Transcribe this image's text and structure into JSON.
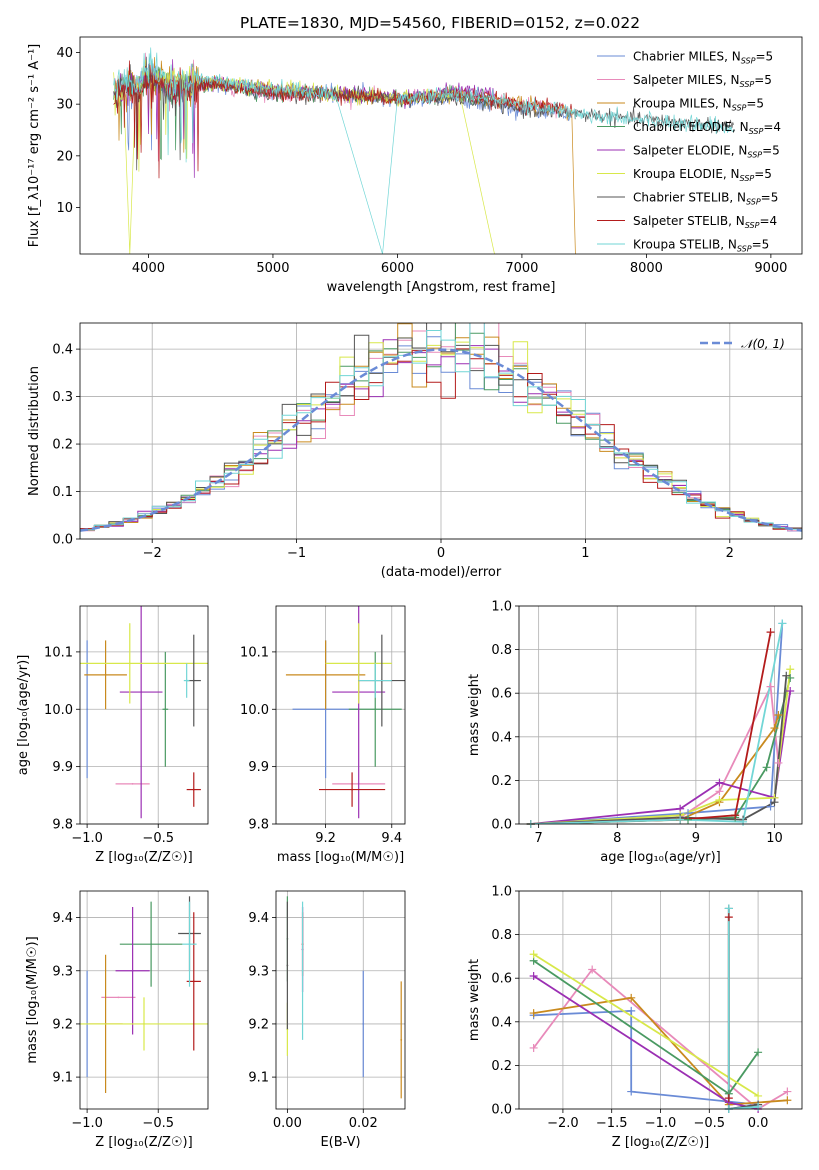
{
  "title": "PLATE=1830, MJD=54560, FIBERID=0152, z=0.022",
  "colors": {
    "Chabrier MILES": "#6a8bd6",
    "Salpeter MILES": "#e88aba",
    "Kroupa MILES": "#c98a1e",
    "Chabrier ELODIE": "#4a9a62",
    "Salpeter ELODIE": "#9b2fb3",
    "Kroupa ELODIE": "#d8e84a",
    "Chabrier STELIB": "#555555",
    "Salpeter STELIB": "#b31b1b",
    "Kroupa STELIB": "#72d6d6"
  },
  "chart_data": [
    {
      "id": "spectrum",
      "type": "line",
      "xlabel": "wavelength [Angstrom, rest frame]",
      "ylabel": "Flux [f_λ10⁻¹⁷ erg cm⁻² s⁻¹ A⁻¹]",
      "xlim": [
        3450,
        9250
      ],
      "ylim": [
        1,
        43
      ],
      "xticks": [
        4000,
        5000,
        6000,
        7000,
        8000,
        9000
      ],
      "yticks": [
        10,
        20,
        30,
        40
      ],
      "grid": false,
      "legend_position": "top-right",
      "series": [
        {
          "name": "Chabrier MILES",
          "label": "Chabrier MILES, N",
          "sub": "SSP",
          "suffix": "=5",
          "x": [
            3720,
            3800,
            3900,
            4000,
            4200,
            4500,
            5000,
            5500,
            6000,
            6500,
            7000,
            7400
          ],
          "y": [
            32,
            34,
            33,
            36,
            33,
            34,
            32,
            32,
            31,
            31,
            29,
            28
          ]
        },
        {
          "name": "Salpeter MILES",
          "label": "Salpeter MILES, N",
          "sub": "SSP",
          "suffix": "=5",
          "x": [
            3720,
            3800,
            3900,
            4000,
            4200,
            4500,
            5000,
            5500,
            6000,
            6500,
            7000,
            7400
          ],
          "y": [
            32,
            33,
            33,
            35,
            33,
            34,
            32,
            32,
            31,
            32,
            30,
            29
          ]
        },
        {
          "name": "Kroupa MILES",
          "label": "Kroupa MILES, N",
          "sub": "SSP",
          "suffix": "=5",
          "x": [
            3720,
            3800,
            3900,
            4000,
            4200,
            4500,
            5000,
            5500,
            6000,
            6500,
            7000,
            7400,
            7430
          ],
          "y": [
            32,
            33,
            34,
            36,
            34,
            34,
            33,
            32,
            31,
            32,
            30,
            29,
            1
          ]
        },
        {
          "name": "Chabrier ELODIE",
          "label": "Chabrier ELODIE, N",
          "sub": "SSP",
          "suffix": "=4",
          "x": [
            3720,
            3800,
            3900,
            4000,
            4200,
            4500,
            5000,
            5500,
            6000,
            6500,
            6780
          ],
          "y": [
            31,
            34,
            33,
            36,
            33,
            34,
            32,
            32,
            31,
            32,
            31
          ]
        },
        {
          "name": "Salpeter ELODIE",
          "label": "Salpeter ELODIE, N",
          "sub": "SSP",
          "suffix": "=5",
          "x": [
            3720,
            3800,
            3900,
            4000,
            4200,
            4500,
            5000,
            5500,
            6000,
            6500,
            6780
          ],
          "y": [
            31,
            33,
            33,
            35,
            33,
            34,
            33,
            32,
            31,
            33,
            32
          ]
        },
        {
          "name": "Kroupa ELODIE",
          "label": "Kroupa ELODIE, N",
          "sub": "SSP",
          "suffix": "=5",
          "x": [
            3720,
            3800,
            3850,
            3900,
            4000,
            4200,
            4500,
            5000,
            5500,
            6000,
            6500,
            6780
          ],
          "y": [
            31,
            33,
            1,
            33,
            36,
            34,
            34,
            33,
            32,
            31,
            32,
            1
          ]
        },
        {
          "name": "Chabrier STELIB",
          "label": "Chabrier STELIB, N",
          "sub": "SSP",
          "suffix": "=5",
          "x": [
            3720,
            3800,
            3900,
            4000,
            4200,
            4500,
            5000,
            5500,
            6000,
            6500,
            7000,
            7500,
            8000,
            8500,
            8700
          ],
          "y": [
            31,
            34,
            33,
            35,
            32,
            34,
            32,
            32,
            31,
            31,
            29,
            28,
            27,
            26,
            26
          ]
        },
        {
          "name": "Salpeter STELIB",
          "label": "Salpeter STELIB, N",
          "sub": "SSP",
          "suffix": "=4",
          "x": [
            3720,
            3800,
            3900,
            4000,
            4200,
            4500,
            5000,
            5500,
            6000,
            6500,
            7000,
            7400
          ],
          "y": [
            31,
            33,
            32,
            35,
            33,
            34,
            32,
            32,
            31,
            32,
            30,
            29
          ]
        },
        {
          "name": "Kroupa STELIB",
          "label": "Kroupa STELIB, N",
          "sub": "SSP",
          "suffix": "=5",
          "x": [
            3720,
            3800,
            3900,
            4000,
            4200,
            4500,
            5000,
            5500,
            5880,
            6000,
            6500,
            7000,
            7500,
            8000,
            8500,
            8700
          ],
          "y": [
            32,
            35,
            34,
            37,
            34,
            35,
            33,
            32,
            1,
            31,
            32,
            30,
            28,
            27,
            26,
            25
          ]
        }
      ]
    },
    {
      "id": "residuals",
      "type": "histogram",
      "xlabel": "(data-model)/error",
      "ylabel": "Normed distribution",
      "xlim": [
        -2.5,
        2.5
      ],
      "ylim": [
        0,
        0.455
      ],
      "xticks": [
        -2,
        -1,
        0,
        1,
        2
      ],
      "yticks": [
        0.0,
        0.1,
        0.2,
        0.3,
        0.4
      ],
      "grid": true,
      "legend_position": "top-right",
      "reference_curve": {
        "label": "𝒩(0, 1)",
        "style": "dashed",
        "color": "#6a8bd6"
      },
      "bins_edges_start": -2.5,
      "bin_width": 0.1
    },
    {
      "id": "age_vs_Z",
      "type": "errorbar",
      "xlabel": "Z [log₁₀(Z/Z☉)]",
      "ylabel": "age  [log₁₀(age/yr)]",
      "xlim": [
        -1.05,
        -0.15
      ],
      "ylim": [
        9.8,
        10.18
      ],
      "xticks": [
        -1.0,
        -0.5
      ],
      "yticks": [
        9.8,
        9.9,
        10.0,
        10.1
      ],
      "grid": true,
      "points": [
        {
          "series": "Chabrier MILES",
          "x": -1.0,
          "xerr": 0.0,
          "y": 10.0,
          "yerr": 0.12
        },
        {
          "series": "Salpeter MILES",
          "x": -0.68,
          "xerr": 0.12,
          "y": 9.87,
          "yerr": 0.0
        },
        {
          "series": "Kroupa MILES",
          "x": -0.87,
          "xerr": 0.15,
          "y": 10.06,
          "yerr": 0.06
        },
        {
          "series": "Chabrier ELODIE",
          "x": -0.45,
          "xerr": 0.02,
          "y": 10.0,
          "yerr": 0.1
        },
        {
          "series": "Salpeter ELODIE",
          "x": -0.62,
          "xerr": 0.15,
          "y": 10.03,
          "yerr": 0.22
        },
        {
          "series": "Kroupa ELODIE",
          "x": -0.7,
          "xerr": 0.55,
          "y": 10.08,
          "yerr": 0.07
        },
        {
          "series": "Chabrier STELIB",
          "x": -0.25,
          "xerr": 0.05,
          "y": 10.05,
          "yerr": 0.08
        },
        {
          "series": "Salpeter STELIB",
          "x": -0.25,
          "xerr": 0.05,
          "y": 9.86,
          "yerr": 0.03
        },
        {
          "series": "Kroupa STELIB",
          "x": -0.3,
          "xerr": 0.02,
          "y": 10.05,
          "yerr": 0.03
        }
      ]
    },
    {
      "id": "age_vs_mass",
      "type": "errorbar",
      "xlabel": "mass [log₁₀(M/M☉)]",
      "xlim": [
        9.05,
        9.44
      ],
      "ylim": [
        9.8,
        10.18
      ],
      "xticks": [
        9.2,
        9.4
      ],
      "yticks": [
        9.8,
        9.9,
        10.0,
        10.1
      ],
      "grid": true,
      "points": [
        {
          "series": "Chabrier MILES",
          "x": 9.2,
          "xerr": 0.1,
          "y": 10.0,
          "yerr": 0.12
        },
        {
          "series": "Salpeter MILES",
          "x": 9.3,
          "xerr": 0.08,
          "y": 9.87,
          "yerr": 0.0
        },
        {
          "series": "Kroupa MILES",
          "x": 9.2,
          "xerr": 0.12,
          "y": 10.06,
          "yerr": 0.06
        },
        {
          "series": "Chabrier ELODIE",
          "x": 9.35,
          "xerr": 0.08,
          "y": 10.0,
          "yerr": 0.1
        },
        {
          "series": "Salpeter ELODIE",
          "x": 9.3,
          "xerr": 0.08,
          "y": 10.03,
          "yerr": 0.22
        },
        {
          "series": "Kroupa ELODIE",
          "x": 9.3,
          "xerr": 0.1,
          "y": 10.08,
          "yerr": 0.07
        },
        {
          "series": "Chabrier STELIB",
          "x": 9.37,
          "xerr": 0.07,
          "y": 10.05,
          "yerr": 0.08
        },
        {
          "series": "Salpeter STELIB",
          "x": 9.28,
          "xerr": 0.1,
          "y": 9.86,
          "yerr": 0.03
        },
        {
          "series": "Kroupa STELIB",
          "x": 9.35,
          "xerr": 0.05,
          "y": 10.05,
          "yerr": 0.03
        }
      ]
    },
    {
      "id": "mass_weight_vs_age",
      "type": "line",
      "xlabel": "age  [log₁₀(age/yr)]",
      "ylabel": "mass weight",
      "xlim": [
        6.75,
        10.35
      ],
      "ylim": [
        0,
        1
      ],
      "xticks": [
        7,
        8,
        9,
        10
      ],
      "yticks": [
        0.0,
        0.2,
        0.4,
        0.6,
        0.8,
        1.0
      ],
      "grid": true,
      "series": [
        {
          "name": "Chabrier MILES",
          "x": [
            6.9,
            8.9,
            9.95,
            10.1
          ],
          "y": [
            0.0,
            0.05,
            0.08,
            0.92
          ]
        },
        {
          "name": "Salpeter MILES",
          "x": [
            6.9,
            8.8,
            9.3,
            9.95,
            10.05
          ],
          "y": [
            0.0,
            0.03,
            0.15,
            0.63,
            0.28
          ]
        },
        {
          "name": "Kroupa MILES",
          "x": [
            6.9,
            8.8,
            9.3,
            10.0,
            10.05
          ],
          "y": [
            0.0,
            0.02,
            0.1,
            0.44,
            0.5
          ]
        },
        {
          "name": "Chabrier ELODIE",
          "x": [
            6.9,
            8.9,
            9.5,
            9.9,
            10.2
          ],
          "y": [
            0.0,
            0.02,
            0.03,
            0.26,
            0.67
          ]
        },
        {
          "name": "Salpeter ELODIE",
          "x": [
            6.9,
            8.8,
            9.3,
            10.0,
            10.2
          ],
          "y": [
            0.0,
            0.07,
            0.19,
            0.12,
            0.61
          ]
        },
        {
          "name": "Kroupa ELODIE",
          "x": [
            6.9,
            8.8,
            9.3,
            10.0,
            10.2
          ],
          "y": [
            0.0,
            0.04,
            0.11,
            0.12,
            0.71
          ]
        },
        {
          "name": "Chabrier STELIB",
          "x": [
            6.9,
            8.8,
            9.6,
            10.0,
            10.15
          ],
          "y": [
            0.0,
            0.03,
            0.02,
            0.1,
            0.68
          ]
        },
        {
          "name": "Salpeter STELIB",
          "x": [
            6.9,
            8.8,
            9.5,
            9.95
          ],
          "y": [
            0.0,
            0.02,
            0.04,
            0.88
          ]
        },
        {
          "name": "Kroupa STELIB",
          "x": [
            6.9,
            8.8,
            9.6,
            10.1
          ],
          "y": [
            0.0,
            0.02,
            0.01,
            0.92
          ]
        }
      ]
    },
    {
      "id": "mass_vs_Z",
      "type": "errorbar",
      "xlabel": "Z [log₁₀(Z/Z☉)]",
      "ylabel": "mass [log₁₀(M/M☉)]",
      "xlim": [
        -1.05,
        -0.15
      ],
      "ylim": [
        9.04,
        9.45
      ],
      "xticks": [
        -1.0,
        -0.5
      ],
      "yticks": [
        9.1,
        9.2,
        9.3,
        9.4
      ],
      "grid": true,
      "points": [
        {
          "series": "Chabrier MILES",
          "x": -1.0,
          "xerr": 0.0,
          "y": 9.2,
          "yerr": 0.1
        },
        {
          "series": "Salpeter MILES",
          "x": -0.78,
          "xerr": 0.12,
          "y": 9.25,
          "yerr": 0.0
        },
        {
          "series": "Kroupa MILES",
          "x": -0.87,
          "xerr": 0.12,
          "y": 9.2,
          "yerr": 0.13
        },
        {
          "series": "Chabrier ELODIE",
          "x": -0.55,
          "xerr": 0.22,
          "y": 9.35,
          "yerr": 0.08
        },
        {
          "series": "Salpeter ELODIE",
          "x": -0.68,
          "xerr": 0.12,
          "y": 9.3,
          "yerr": 0.12
        },
        {
          "series": "Kroupa ELODIE",
          "x": -0.6,
          "xerr": 0.5,
          "y": 9.2,
          "yerr": 0.05
        },
        {
          "series": "Chabrier STELIB",
          "x": -0.28,
          "xerr": 0.08,
          "y": 9.37,
          "yerr": 0.07
        },
        {
          "series": "Salpeter STELIB",
          "x": -0.25,
          "xerr": 0.05,
          "y": 9.28,
          "yerr": 0.13
        },
        {
          "series": "Kroupa STELIB",
          "x": -0.28,
          "xerr": 0.05,
          "y": 9.35,
          "yerr": 0.08
        }
      ]
    },
    {
      "id": "mass_vs_ebv",
      "type": "errorbar",
      "xlabel": "E(B-V)",
      "xlim": [
        -0.003,
        0.031
      ],
      "ylim": [
        9.04,
        9.45
      ],
      "xticks": [
        0.0,
        0.02
      ],
      "yticks": [
        9.1,
        9.2,
        9.3,
        9.4
      ],
      "grid": true,
      "points": [
        {
          "series": "Chabrier MILES",
          "x": 0.02,
          "xerr": 0.0,
          "y": 9.2,
          "yerr": 0.1
        },
        {
          "series": "Salpeter MILES",
          "x": 0.004,
          "xerr": 0.0,
          "y": 9.34,
          "yerr": 0.08
        },
        {
          "series": "Kroupa MILES",
          "x": 0.03,
          "xerr": 0.0,
          "y": 9.17,
          "yerr": 0.11
        },
        {
          "series": "Chabrier ELODIE",
          "x": 0.0,
          "xerr": 0.0,
          "y": 9.36,
          "yerr": 0.08
        },
        {
          "series": "Salpeter ELODIE",
          "x": 0.004,
          "xerr": 0.0,
          "y": 9.34,
          "yerr": 0.08
        },
        {
          "series": "Kroupa ELODIE",
          "x": 0.0,
          "xerr": 0.0,
          "y": 9.19,
          "yerr": 0.05
        },
        {
          "series": "Chabrier STELIB",
          "x": 0.0,
          "xerr": 0.0,
          "y": 9.31,
          "yerr": 0.12
        },
        {
          "series": "Salpeter STELIB",
          "x": 0.004,
          "xerr": 0.0,
          "y": 9.35,
          "yerr": 0.06
        },
        {
          "series": "Kroupa STELIB",
          "x": 0.004,
          "xerr": 0.0,
          "y": 9.3,
          "yerr": 0.13
        }
      ]
    },
    {
      "id": "mass_weight_vs_Z",
      "type": "line",
      "xlabel": "Z [log₁₀(Z/Z☉)]",
      "ylabel": "mass weight",
      "xlim": [
        -2.45,
        0.45
      ],
      "ylim": [
        0,
        1
      ],
      "xticks": [
        -2.0,
        -1.5,
        -1.0,
        -0.5,
        0.0
      ],
      "yticks": [
        0.0,
        0.2,
        0.4,
        0.6,
        0.8,
        1.0
      ],
      "grid": true,
      "series": [
        {
          "name": "Chabrier MILES",
          "x": [
            -2.3,
            -1.3,
            -1.3,
            0.0,
            -0.3
          ],
          "y": [
            0.43,
            0.45,
            0.08,
            0.02,
            0.0
          ]
        },
        {
          "name": "Salpeter MILES",
          "x": [
            -2.3,
            -1.7,
            0.0,
            0.3
          ],
          "y": [
            0.28,
            0.64,
            0.0,
            0.08
          ]
        },
        {
          "name": "Kroupa MILES",
          "x": [
            -2.3,
            -1.3,
            -0.3,
            0.3
          ],
          "y": [
            0.44,
            0.51,
            0.02,
            0.04
          ]
        },
        {
          "name": "Chabrier ELODIE",
          "x": [
            -2.3,
            -0.3,
            0.0
          ],
          "y": [
            0.68,
            0.07,
            0.26
          ]
        },
        {
          "name": "Salpeter ELODIE",
          "x": [
            -2.3,
            -0.3,
            0.0
          ],
          "y": [
            0.61,
            0.03,
            0.0
          ]
        },
        {
          "name": "Kroupa ELODIE",
          "x": [
            -2.3,
            0.0
          ],
          "y": [
            0.71,
            0.06
          ]
        },
        {
          "name": "Chabrier STELIB",
          "x": [
            -0.3,
            -0.3,
            0.0
          ],
          "y": [
            0.92,
            0.0,
            0.02
          ]
        },
        {
          "name": "Salpeter STELIB",
          "x": [
            -0.3,
            -0.3
          ],
          "y": [
            0.88,
            0.05
          ]
        },
        {
          "name": "Kroupa STELIB",
          "x": [
            -0.3,
            -0.3,
            0.0
          ],
          "y": [
            0.92,
            0.0,
            0.01
          ]
        }
      ]
    }
  ]
}
